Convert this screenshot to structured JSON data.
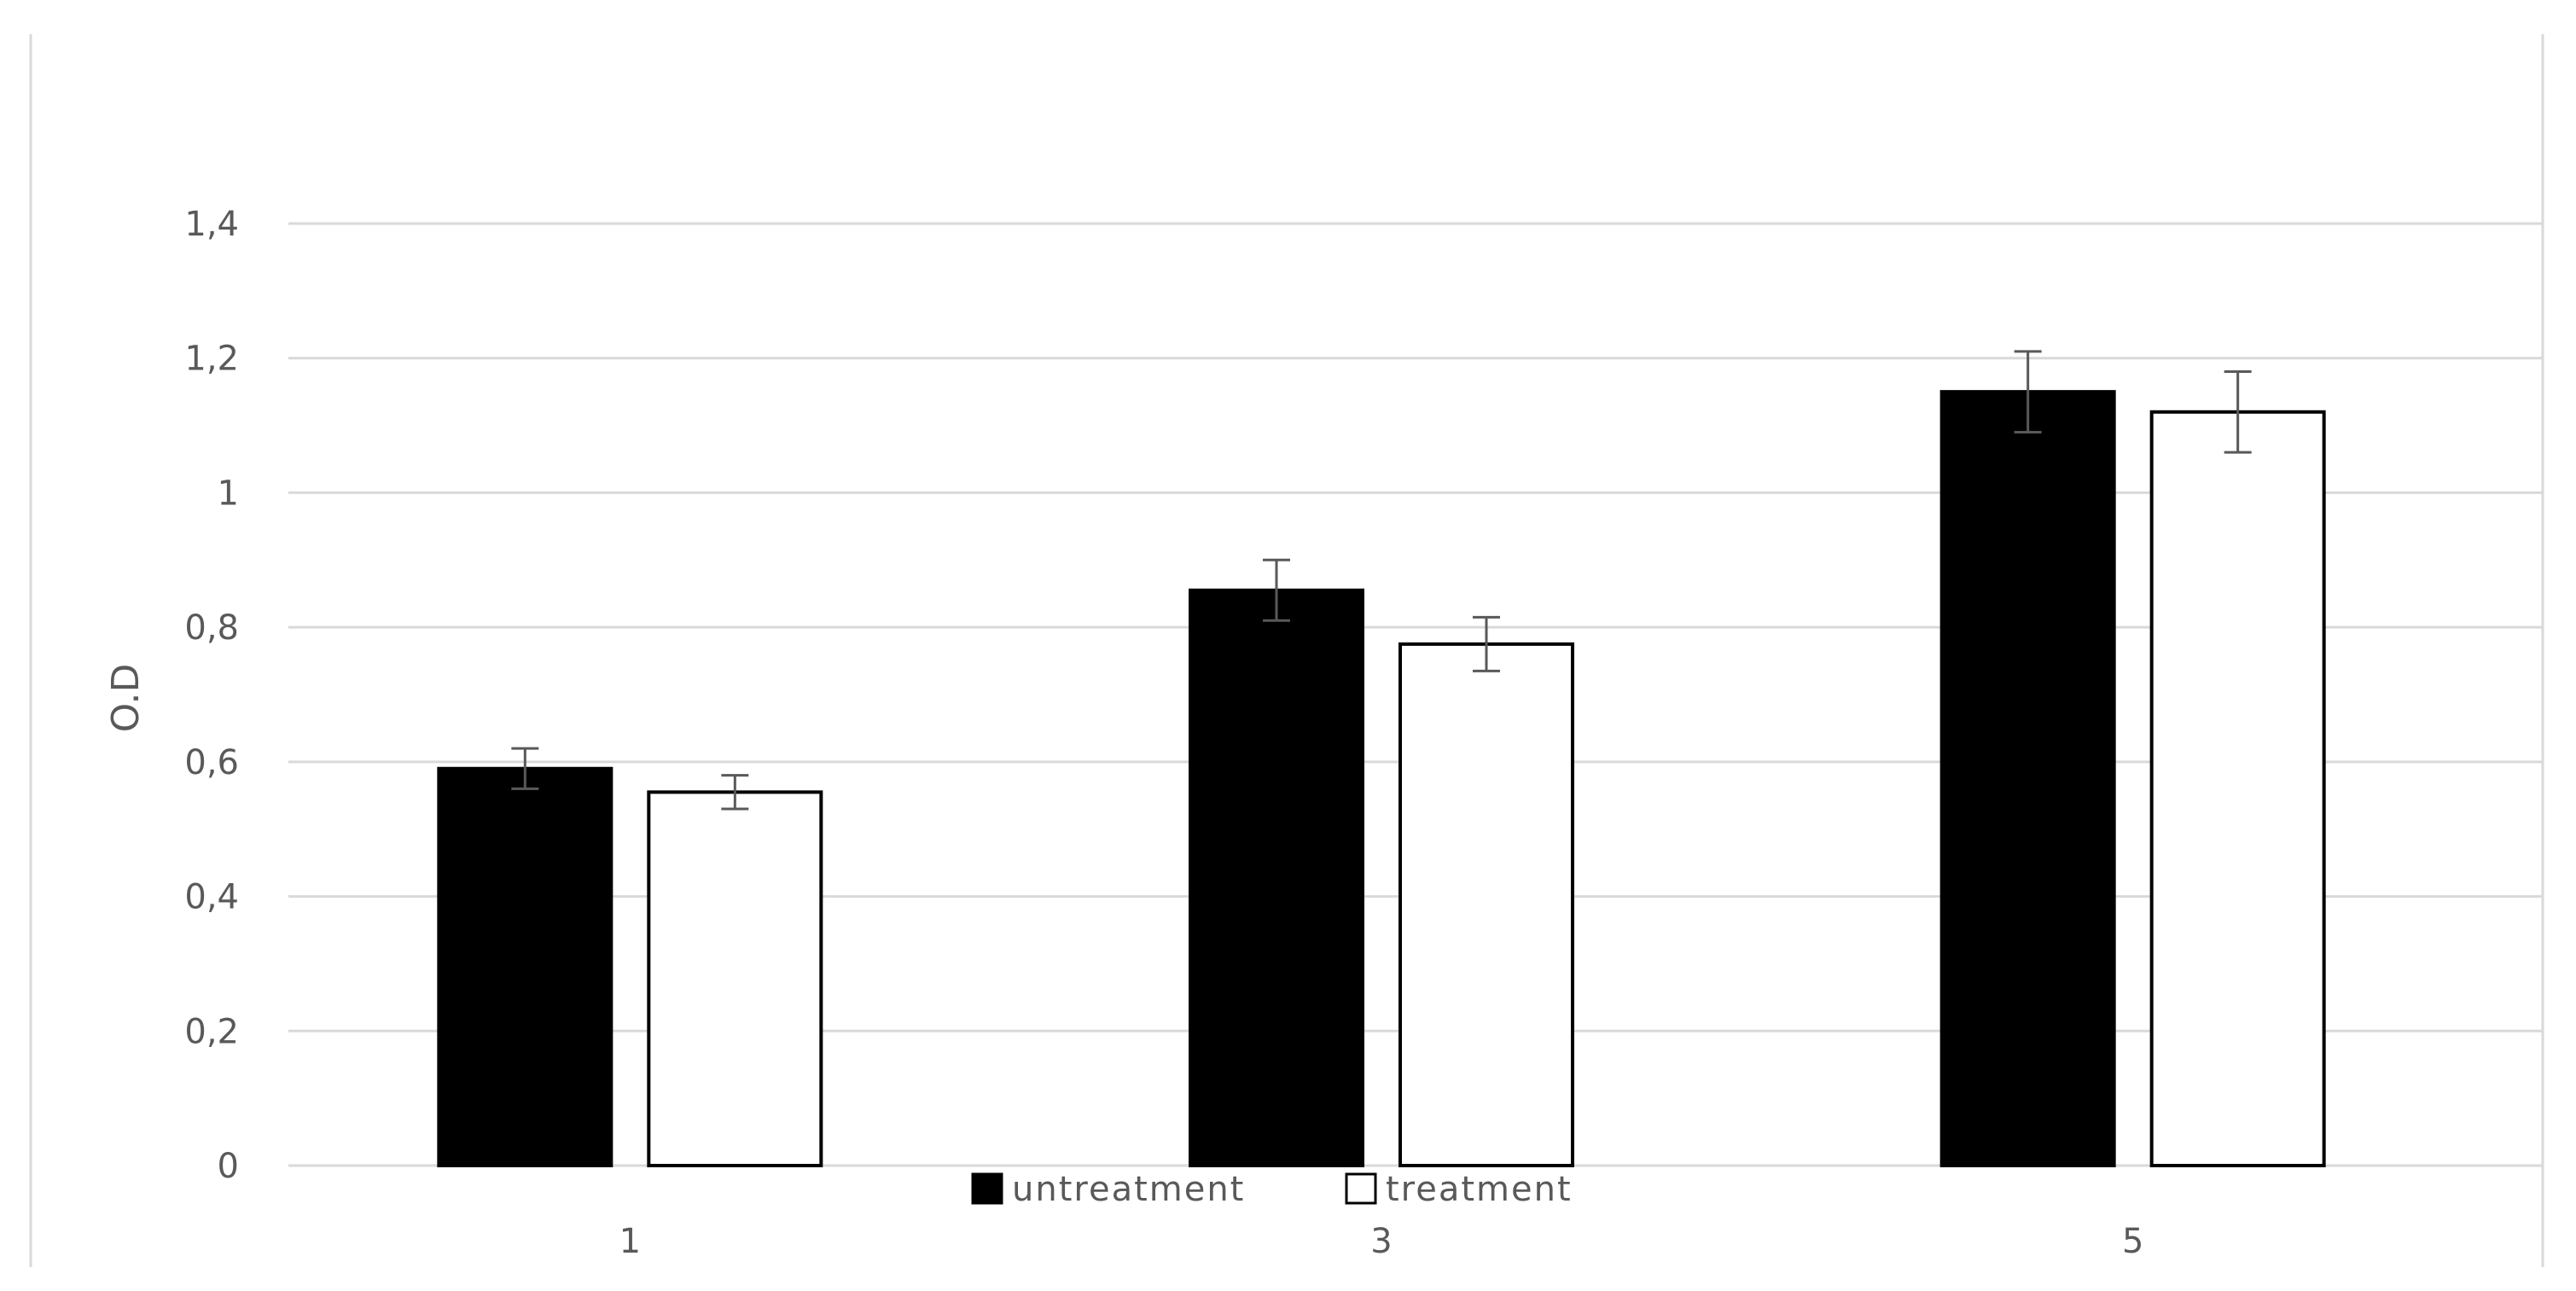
{
  "chart_data": {
    "type": "bar",
    "title": "",
    "xlabel": "",
    "ylabel": "O.D",
    "categories": [
      "1",
      "3",
      "5"
    ],
    "series": [
      {
        "name": "untreatment",
        "values": [
          0.59,
          0.855,
          1.15
        ],
        "errors": [
          0.03,
          0.045,
          0.06
        ],
        "color": "#000000",
        "fill": "solid"
      },
      {
        "name": "treatment",
        "values": [
          0.555,
          0.775,
          1.12
        ],
        "errors": [
          0.025,
          0.04,
          0.06
        ],
        "color": "#000000",
        "fill": "outline"
      }
    ],
    "ylim": [
      0,
      1.4
    ],
    "yticks": [
      "0",
      "0,2",
      "0,4",
      "0,6",
      "0,8",
      "1",
      "1,2",
      "1,4"
    ],
    "grid": true,
    "legend_position": "bottom",
    "gridline_color": "#d9d9d9",
    "text_color": "#595959",
    "error_bar_color": "#595959"
  }
}
